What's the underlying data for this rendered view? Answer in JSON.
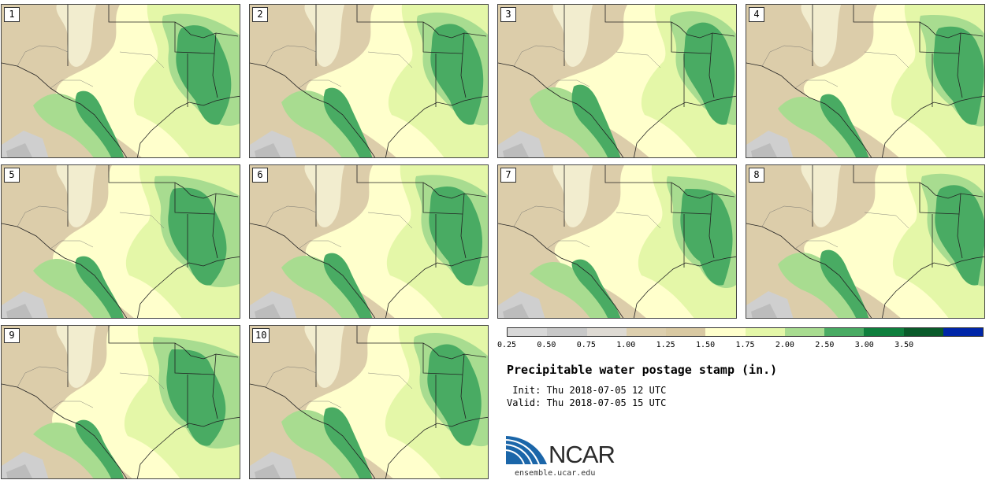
{
  "panels": [
    {
      "label": "1"
    },
    {
      "label": "2"
    },
    {
      "label": "3"
    },
    {
      "label": "4"
    },
    {
      "label": "5"
    },
    {
      "label": "6"
    },
    {
      "label": "7"
    },
    {
      "label": "8"
    },
    {
      "label": "9"
    },
    {
      "label": "10"
    }
  ],
  "colorbar": {
    "colors": [
      "#d8d8d8",
      "#c8c8c8",
      "#dedad3",
      "#ddcfae",
      "#d9c9a2",
      "#ffffcc",
      "#e4f7a8",
      "#a8dc90",
      "#49ab63",
      "#0f7f3d",
      "#0a5a2a",
      "#0026a8"
    ],
    "ticks": [
      "0.25",
      "0.50",
      "0.75",
      "1.00",
      "1.25",
      "1.50",
      "1.75",
      "2.00",
      "2.50",
      "3.00",
      "3.50"
    ]
  },
  "title": "Precipitable water postage stamp (in.)",
  "init_line": " Init: Thu 2018-07-05 12 UTC",
  "valid_line": "Valid: Thu 2018-07-05 15 UTC",
  "logo": {
    "text": "NCAR",
    "url": "ensemble.ucar.edu"
  }
}
